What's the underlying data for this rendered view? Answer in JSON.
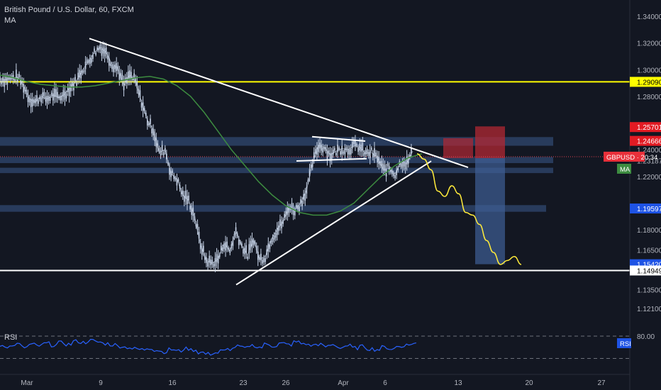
{
  "legend": {
    "symbol_title": "British Pound / U.S. Dollar, 60, FXCM",
    "indicator": "MA"
  },
  "rsi_panel": {
    "label": "RSI",
    "tag": "RSI",
    "top_level_label": "80.00"
  },
  "colors": {
    "background": "#131722",
    "candle": "#c9d6ea",
    "ma": "#3d8c40",
    "resistance": "#ffff00",
    "support": "#ffffff",
    "zone": "#3a5a8c",
    "projection": "#ffeb3b",
    "stop_zone": "#b22833",
    "target_zone": "#3f5f96",
    "rsi": "#2962ff"
  },
  "chart_data": {
    "type": "line",
    "title": "British Pound / U.S. Dollar, 60, FXCM",
    "y_axis": {
      "ticks": [
        "1.34000",
        "1.32000",
        "1.30000",
        "1.28000",
        "1.24000",
        "1.22000",
        "1.18000",
        "1.16500",
        "1.13500",
        "1.12100"
      ],
      "range": [
        1.112,
        1.348
      ]
    },
    "x_axis": {
      "ticks": [
        "Mar",
        "9",
        "16",
        "23",
        "26",
        "Apr",
        "6",
        "13",
        "20",
        "27"
      ]
    },
    "price_labels": [
      {
        "value": 1.2909,
        "text": "1.29090",
        "style": "yellow"
      },
      {
        "value": 1.25701,
        "text": "1.25701",
        "style": "red"
      },
      {
        "value": 1.24666,
        "text": "1.24666",
        "style": "red"
      },
      {
        "value": 1.2324,
        "text": "1.23240",
        "style": "plain"
      },
      {
        "value": 1.23187,
        "text": "1.23187",
        "style": "plain"
      },
      {
        "value": 1.19597,
        "text": "1.19597",
        "style": "blue"
      },
      {
        "value": 1.1542,
        "text": "1.15420",
        "style": "blue"
      },
      {
        "value": 1.14949,
        "text": "1.14949",
        "style": "white"
      }
    ],
    "current_price": {
      "symbol": "GBPUSD",
      "countdown": "20:34",
      "indicator_tag": "MA"
    },
    "horizontal_levels": [
      {
        "name": "resistance",
        "value": 1.2909
      },
      {
        "name": "support",
        "value": 1.14949
      }
    ],
    "zones": [
      {
        "from": 1.243,
        "to": 1.2495
      },
      {
        "from": 1.23,
        "to": 1.2345
      },
      {
        "from": 1.2225,
        "to": 1.2265
      },
      {
        "from": 1.1935,
        "to": 1.1985
      }
    ],
    "price_series": [
      1.293,
      1.2925,
      1.2935,
      1.2945,
      1.288,
      1.278,
      1.276,
      1.28,
      1.278,
      1.281,
      1.279,
      1.282,
      1.287,
      1.292,
      1.3,
      1.306,
      1.313,
      1.317,
      1.313,
      1.304,
      1.301,
      1.288,
      1.296,
      1.291,
      1.276,
      1.262,
      1.255,
      1.238,
      1.24,
      1.222,
      1.218,
      1.206,
      1.202,
      1.19,
      1.169,
      1.157,
      1.155,
      1.158,
      1.17,
      1.164,
      1.179,
      1.168,
      1.161,
      1.173,
      1.158,
      1.16,
      1.173,
      1.18,
      1.186,
      1.197,
      1.195,
      1.2,
      1.21,
      1.23,
      1.243,
      1.242,
      1.236,
      1.239,
      1.241,
      1.24,
      1.243,
      1.242,
      1.237,
      1.238,
      1.234,
      1.225,
      1.226,
      1.222,
      1.231,
      1.23,
      1.239
    ],
    "ma_series": [
      1.296,
      1.294,
      1.291,
      1.289,
      1.288,
      1.287,
      1.287,
      1.288,
      1.29,
      1.292,
      1.294,
      1.295,
      1.293,
      1.288,
      1.28,
      1.268,
      1.254,
      1.24,
      1.228,
      1.216,
      1.206,
      1.198,
      1.193,
      1.191,
      1.191,
      1.194,
      1.2,
      1.21,
      1.22,
      1.228,
      1.234,
      1.237
    ],
    "projection": [
      1.237,
      1.233,
      1.225,
      1.209,
      1.205,
      1.213,
      1.207,
      1.193,
      1.191,
      1.184,
      1.172,
      1.163,
      1.154,
      1.157,
      1.16,
      1.154
    ],
    "rsi_series": [
      55,
      52,
      58,
      50,
      57,
      54,
      60,
      56,
      62,
      58,
      66,
      63,
      68,
      64,
      60,
      57,
      53,
      50,
      46,
      44,
      48,
      42,
      38,
      44,
      40,
      46,
      43,
      36,
      32,
      35,
      40,
      45,
      52,
      48,
      55,
      50,
      58,
      54,
      60,
      57,
      64,
      60,
      55,
      58,
      52,
      56,
      50,
      54,
      48,
      52,
      46,
      44,
      50,
      46,
      52,
      56,
      60
    ],
    "rsi_levels": [
      80,
      20
    ]
  }
}
